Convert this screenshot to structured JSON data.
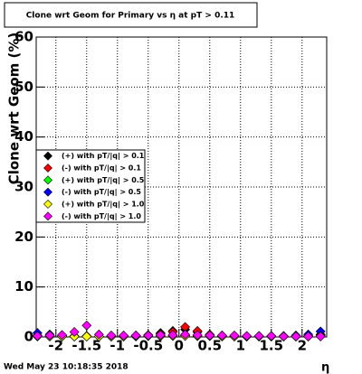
{
  "chart_data": {
    "type": "scatter",
    "title": "Clone wrt Geom for Primary vs   η at pT > 0.11",
    "ylabel": "Clone wrt Geom (%)",
    "xlabel": "η",
    "timestamp": "Wed May 23 10:18:35 2018",
    "x": [
      -2.3,
      -2.1,
      -1.9,
      -1.7,
      -1.5,
      -1.3,
      -1.1,
      -0.9,
      -0.7,
      -0.5,
      -0.3,
      -0.1,
      0.1,
      0.3,
      0.5,
      0.7,
      0.9,
      1.1,
      1.3,
      1.5,
      1.7,
      1.9,
      2.1,
      2.3
    ],
    "series": [
      {
        "name": "(+) with pT/|q| > 0.1",
        "color": "#000000",
        "values": [
          0.3,
          0.2,
          0.1,
          0.1,
          0.1,
          0.1,
          0.1,
          0.2,
          0.2,
          0.3,
          0.8,
          1.2,
          1.5,
          1.0,
          0.4,
          0.2,
          0.2,
          0.1,
          0.1,
          0.1,
          0.1,
          0.1,
          0.2,
          0.5
        ]
      },
      {
        "name": "(-) with pT/|q| > 0.1",
        "color": "#ff0000",
        "values": [
          0.3,
          0.2,
          0.2,
          0.1,
          0.1,
          0.1,
          0.2,
          0.2,
          0.3,
          0.4,
          0.6,
          1.0,
          2.0,
          1.2,
          0.5,
          0.3,
          0.2,
          0.1,
          0.1,
          0.1,
          0.1,
          0.2,
          0.2,
          0.4
        ]
      },
      {
        "name": "(+) with pT/|q| > 0.5",
        "color": "#00ff00",
        "values": [
          0.2,
          0.1,
          0.1,
          0.1,
          0.1,
          0.1,
          0.1,
          0.1,
          0.1,
          0.2,
          0.2,
          0.3,
          0.3,
          0.2,
          0.2,
          0.1,
          0.1,
          0.1,
          0.1,
          0.1,
          0.1,
          0.1,
          0.1,
          0.3
        ]
      },
      {
        "name": "(-) with pT/|q| > 0.5",
        "color": "#0000ff",
        "values": [
          0.8,
          0.5,
          0.3,
          0.2,
          0.2,
          0.1,
          0.1,
          0.1,
          0.2,
          0.2,
          0.2,
          0.3,
          0.3,
          0.2,
          0.2,
          0.2,
          0.1,
          0.1,
          0.2,
          0.2,
          0.2,
          0.3,
          0.5,
          1.1
        ]
      },
      {
        "name": "(+) with pT/|q| > 1.0",
        "color": "#ffff00",
        "values": [
          0.1,
          0.1,
          0.1,
          0.1,
          0.1,
          0.1,
          0.1,
          0.1,
          0.2,
          0.2,
          0.2,
          0.2,
          0.2,
          0.2,
          0.2,
          0.1,
          0.1,
          0.1,
          0.1,
          0.1,
          0.1,
          0.1,
          0.1,
          0.2
        ]
      },
      {
        "name": "(-) with pT/|q| > 1.0",
        "color": "#ff00ff",
        "values": [
          0.2,
          0.3,
          0.4,
          1.0,
          2.3,
          0.5,
          0.3,
          0.3,
          0.3,
          0.3,
          0.4,
          0.4,
          0.5,
          0.4,
          0.3,
          0.3,
          0.3,
          0.2,
          0.2,
          0.2,
          0.1,
          0.1,
          0.1,
          0.1
        ]
      }
    ],
    "xlim": [
      -2.32,
      2.4
    ],
    "ylim": [
      0,
      60
    ],
    "xticks": [
      -2,
      -1.5,
      -1,
      -0.5,
      0,
      0.5,
      1,
      1.5,
      2
    ],
    "yticks": [
      0,
      10,
      20,
      30,
      40,
      50,
      60
    ],
    "grid": true,
    "legend": "left"
  }
}
